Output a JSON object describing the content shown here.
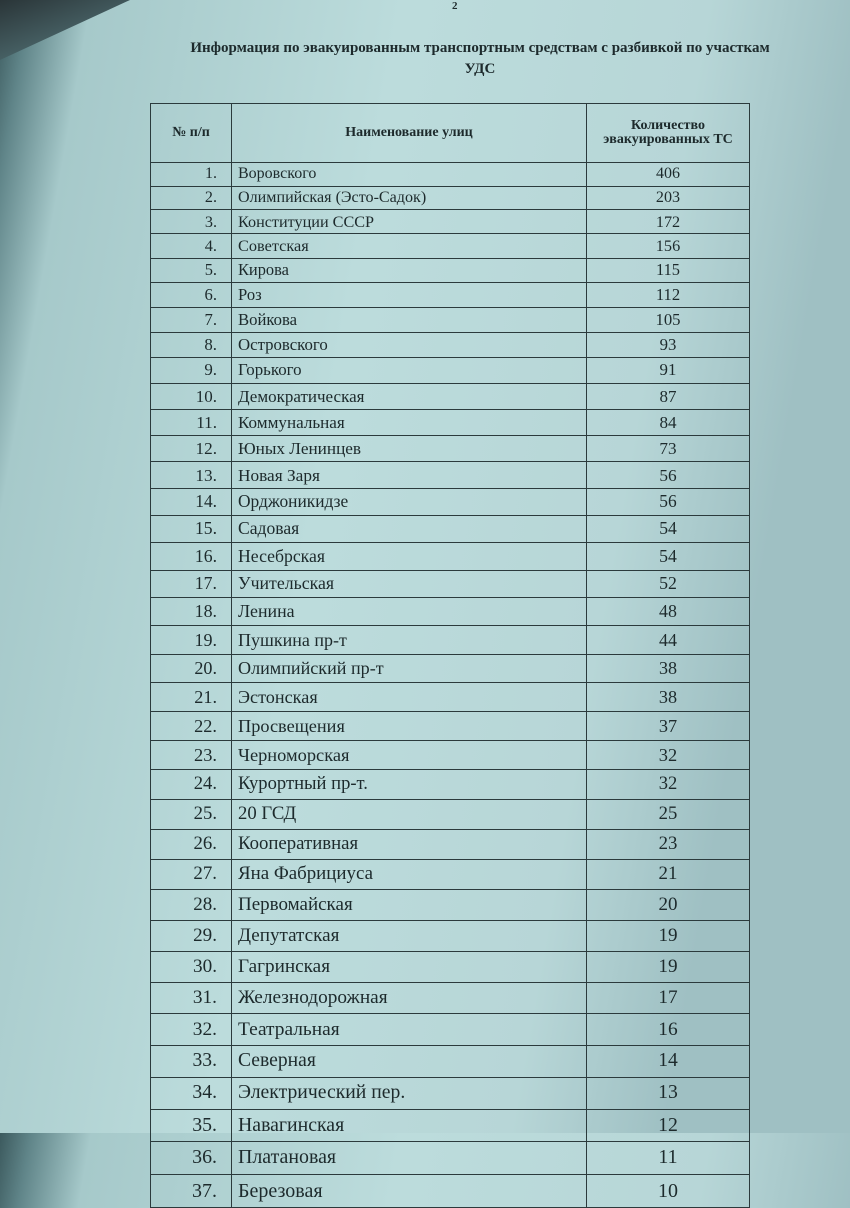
{
  "page_number": "2",
  "title": "Информация по эвакуированным транспортным средствам с разбивкой по участкам УДС",
  "table": {
    "headers": [
      "№ п/п",
      "Наименование улиц",
      "Количество эвакуированных ТС"
    ],
    "rows": [
      [
        "1.",
        "Воровского",
        "406"
      ],
      [
        "2.",
        "Олимпийская (Эсто-Садок)",
        "203"
      ],
      [
        "3.",
        "Конституции СССР",
        "172"
      ],
      [
        "4.",
        "Советская",
        "156"
      ],
      [
        "5.",
        "Кирова",
        "115"
      ],
      [
        "6.",
        "Роз",
        "112"
      ],
      [
        "7.",
        "Войкова",
        "105"
      ],
      [
        "8.",
        "Островского",
        "93"
      ],
      [
        "9.",
        "Горького",
        "91"
      ],
      [
        "10.",
        "Демократическая",
        "87"
      ],
      [
        "11.",
        "Коммунальная",
        "84"
      ],
      [
        "12.",
        "Юных Ленинцев",
        "73"
      ],
      [
        "13.",
        "Новая Заря",
        "56"
      ],
      [
        "14.",
        "Орджоникидзе",
        "56"
      ],
      [
        "15.",
        "Садовая",
        "54"
      ],
      [
        "16.",
        "Несебрская",
        "54"
      ],
      [
        "17.",
        "Учительская",
        "52"
      ],
      [
        "18.",
        "Ленина",
        "48"
      ],
      [
        "19.",
        "Пушкина пр-т",
        "44"
      ],
      [
        "20.",
        "Олимпийский пр-т",
        "38"
      ],
      [
        "21.",
        "Эстонская",
        "38"
      ],
      [
        "22.",
        "Просвещения",
        "37"
      ],
      [
        "23.",
        "Черноморская",
        "32"
      ],
      [
        "24.",
        "Курортный пр-т.",
        "32"
      ],
      [
        "25.",
        "20 ГСД",
        "25"
      ],
      [
        "26.",
        "Кооперативная",
        "23"
      ],
      [
        "27.",
        "Яна Фабрициуса",
        "21"
      ],
      [
        "28.",
        "Первомайская",
        "20"
      ],
      [
        "29.",
        "Депутатская",
        "19"
      ],
      [
        "30.",
        "Гагринская",
        "19"
      ],
      [
        "31.",
        "Железнодорожная",
        "17"
      ],
      [
        "32.",
        "Театральная",
        "16"
      ],
      [
        "33.",
        "Северная",
        "14"
      ],
      [
        "34.",
        "Электрический пер.",
        "13"
      ],
      [
        "35.",
        "Навагинская",
        "12"
      ],
      [
        "36.",
        "Платановая",
        "11"
      ],
      [
        "37.",
        "Березовая",
        "10"
      ]
    ]
  }
}
